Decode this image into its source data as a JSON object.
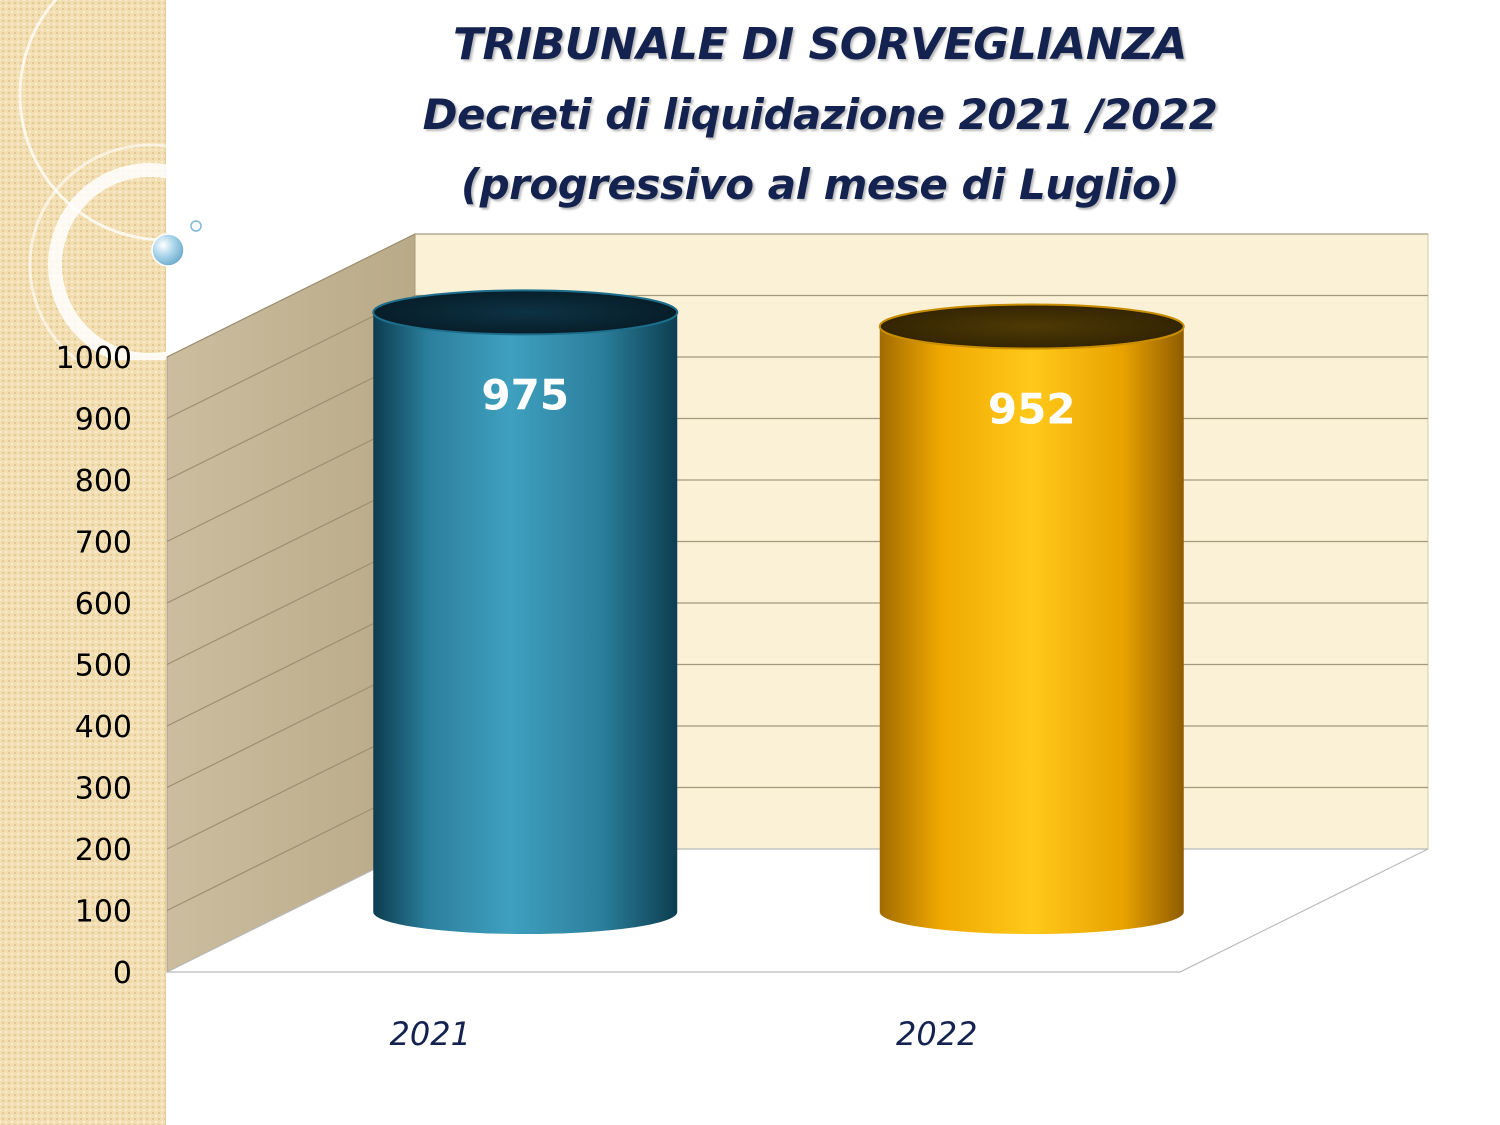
{
  "title_lines": [
    "TRIBUNALE DI SORVEGLIANZA",
    "Decreti di liquidazione 2021 /2022",
    "(progressivo al mese di Luglio)"
  ],
  "colors": {
    "title": "#14224f",
    "series_2021": "#3a97b5",
    "series_2022": "#f5b400",
    "back_wall": "#faf1d6",
    "side_wall": "#c4b595",
    "data_label": "#ffffff",
    "axis_text": "#000000",
    "category_text": "#14224f"
  },
  "chart_data": {
    "type": "bar",
    "categories": [
      "2021",
      "2022"
    ],
    "values": [
      975,
      952
    ],
    "data_labels": [
      "975",
      "952"
    ],
    "ylim": [
      0,
      1000
    ],
    "yticks": [
      "0",
      "100",
      "200",
      "300",
      "400",
      "500",
      "600",
      "700",
      "800",
      "900",
      "1000"
    ],
    "grid": true,
    "style": "3d-cylinder",
    "legend": false
  }
}
